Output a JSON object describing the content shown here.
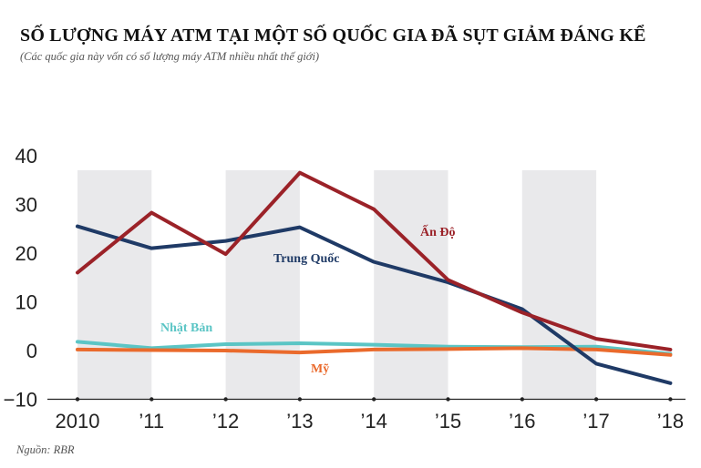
{
  "title": "SỐ LƯỢNG MÁY ATM TẠI MỘT SỐ QUỐC GIA ĐÃ SỤT GIẢM ĐÁNG KỂ",
  "subtitle": "(Các quốc gia này vốn có số lượng máy ATM nhiều nhất thế giới)",
  "source": "Nguồn: RBR",
  "chart_data": {
    "type": "line",
    "title": "SỐ LƯỢNG MÁY ATM TẠI MỘT SỐ QUỐC GIA ĐÃ SỤT GIẢM ĐÁNG KỂ",
    "subtitle": "(Các quốc gia này vốn có số lượng máy ATM nhiều nhất thế giới)",
    "categories": [
      "2010",
      "’11",
      "’12",
      "’13",
      "’14",
      "’15",
      "’16",
      "’17",
      "’18"
    ],
    "yticks": [
      "40",
      "30",
      "20",
      "10",
      "0",
      "−10"
    ],
    "ylim": [
      -10,
      40
    ],
    "shaded_bands": [
      [
        "2010",
        "’11"
      ],
      [
        "’12",
        "’13"
      ],
      [
        "’14",
        "’15"
      ],
      [
        "’16",
        "’17"
      ]
    ],
    "series": [
      {
        "name": "Ấn Độ",
        "color": "#9b2228",
        "values": [
          16,
          28.3,
          19.8,
          36.5,
          29,
          14.5,
          7.8,
          2.4,
          0.2
        ]
      },
      {
        "name": "Trung Quốc",
        "color": "#1f3a66",
        "values": [
          25.5,
          21,
          22.5,
          25.3,
          18.2,
          14,
          8.5,
          -2.7,
          -6.7
        ]
      },
      {
        "name": "Nhật Bản",
        "color": "#5bc5c5",
        "values": [
          1.8,
          0.5,
          1.3,
          1.5,
          1.2,
          0.8,
          0.7,
          0.8,
          -0.7
        ]
      },
      {
        "name": "Mỹ",
        "color": "#ea6a2c",
        "values": [
          0.2,
          0.1,
          0,
          -0.4,
          0.2,
          0.3,
          0.5,
          0.2,
          -0.9
        ]
      }
    ]
  }
}
